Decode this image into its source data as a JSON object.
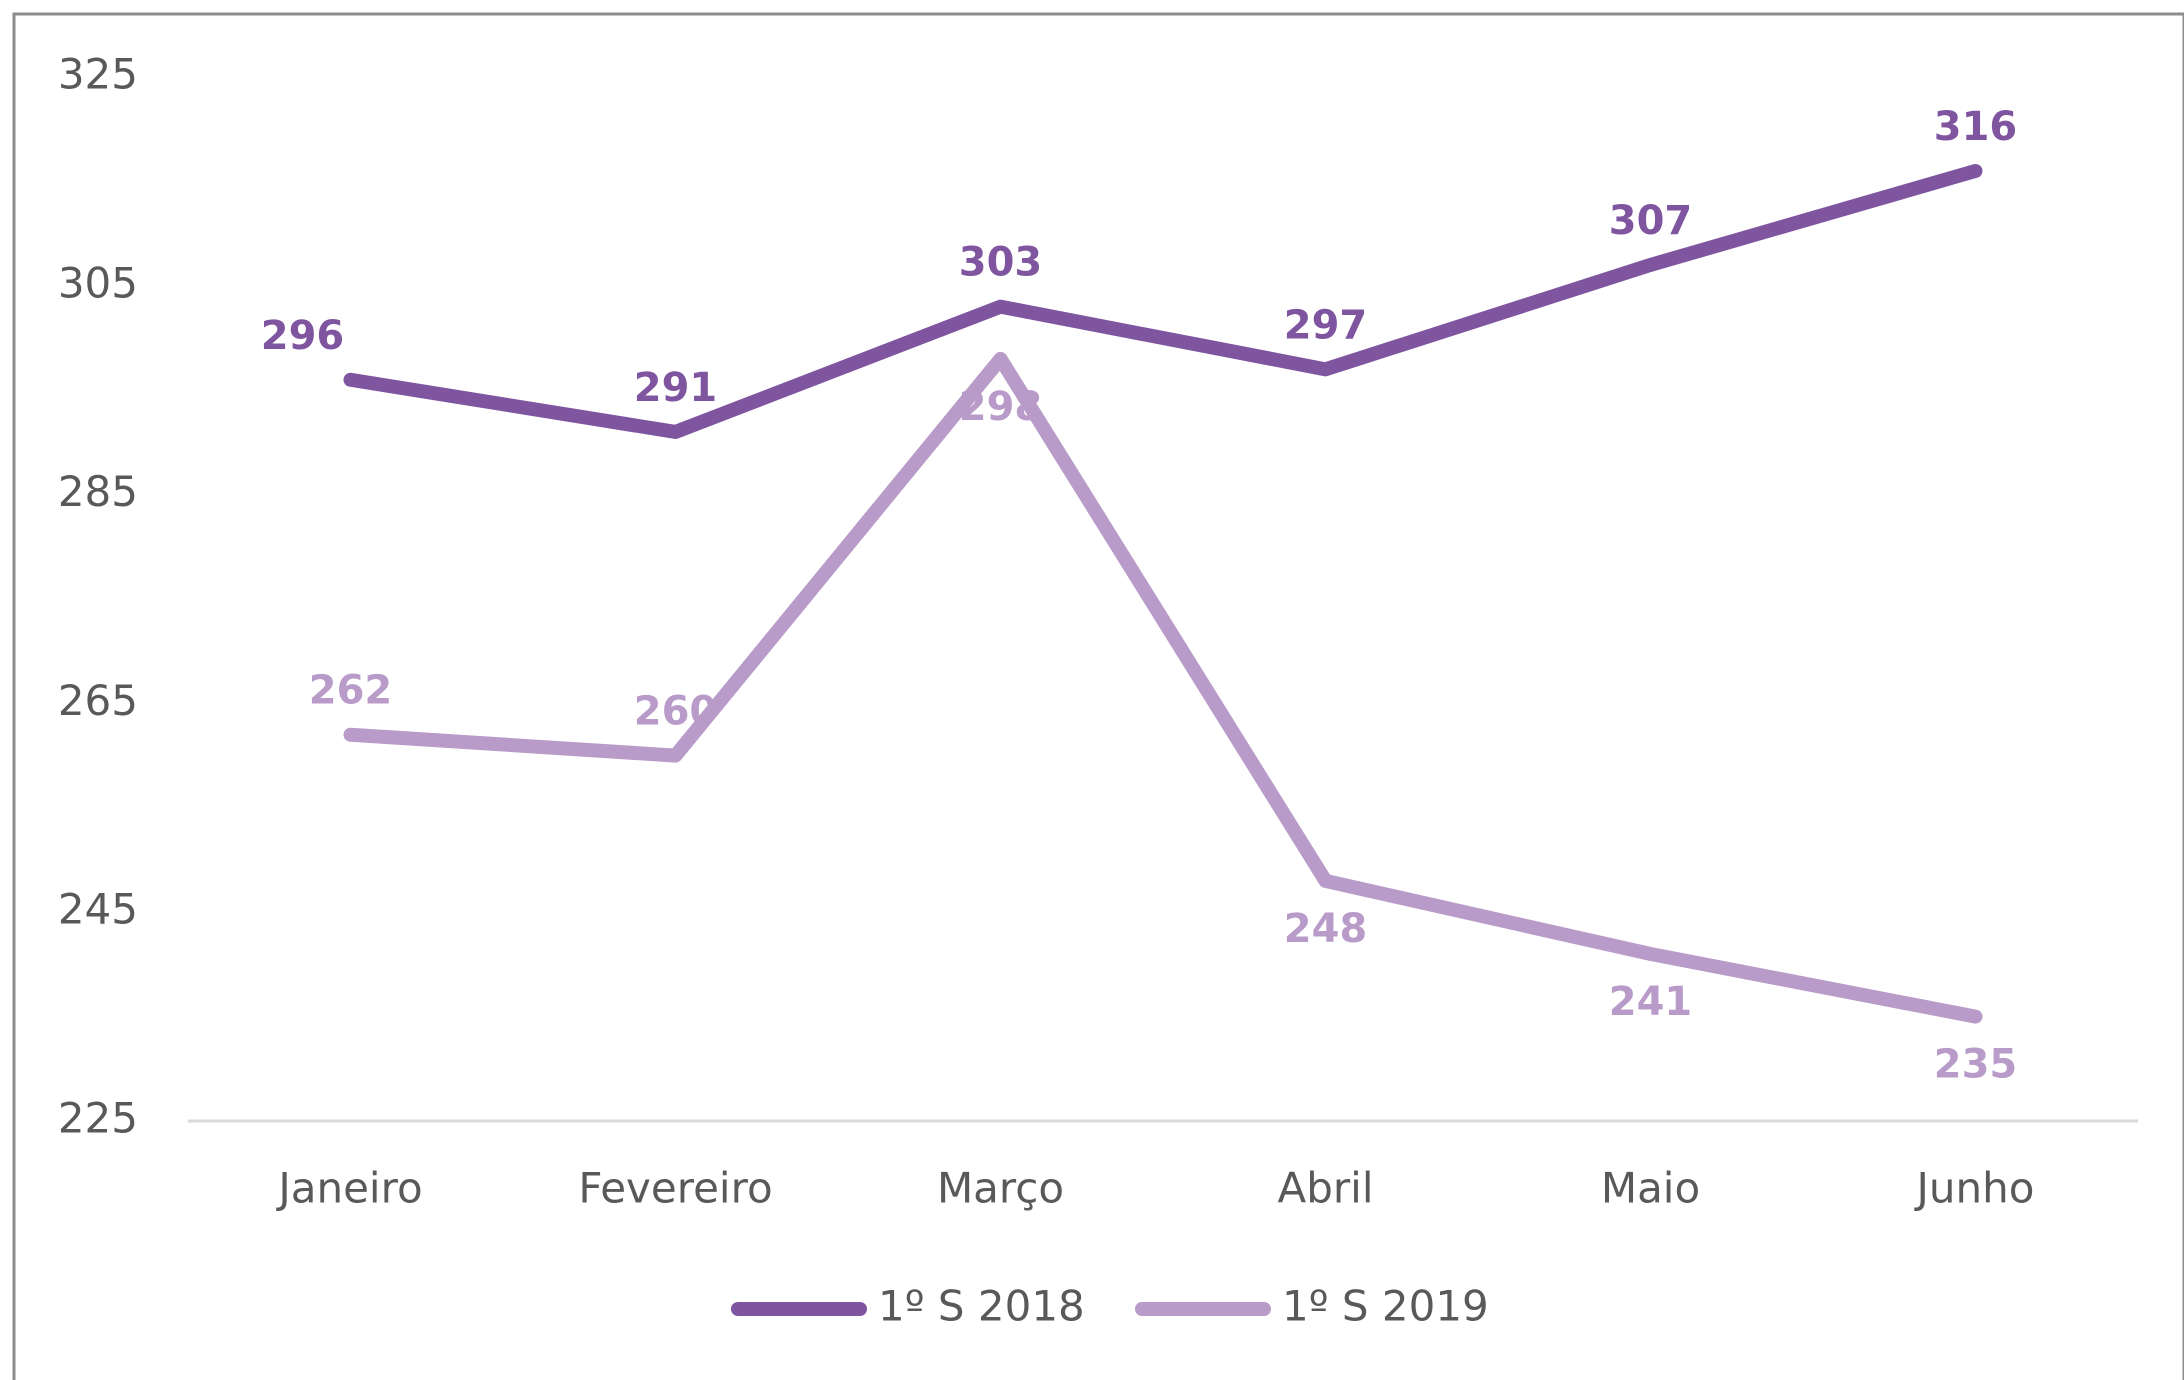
{
  "chart_data": {
    "type": "line",
    "categories": [
      "Janeiro",
      "Fevereiro",
      "Março",
      "Abril",
      "Maio",
      "Junho"
    ],
    "series": [
      {
        "name": "1º S 2018",
        "color": "#7f55a0",
        "values": [
          296,
          291,
          303,
          297,
          307,
          316
        ]
      },
      {
        "name": "1º S 2019",
        "color": "#b89bc8",
        "values": [
          262,
          260,
          298,
          248,
          241,
          235
        ]
      }
    ],
    "ylim": [
      225,
      325
    ],
    "yticks": [
      225,
      245,
      265,
      285,
      305,
      325
    ],
    "grid": false,
    "legend": "bottom"
  }
}
